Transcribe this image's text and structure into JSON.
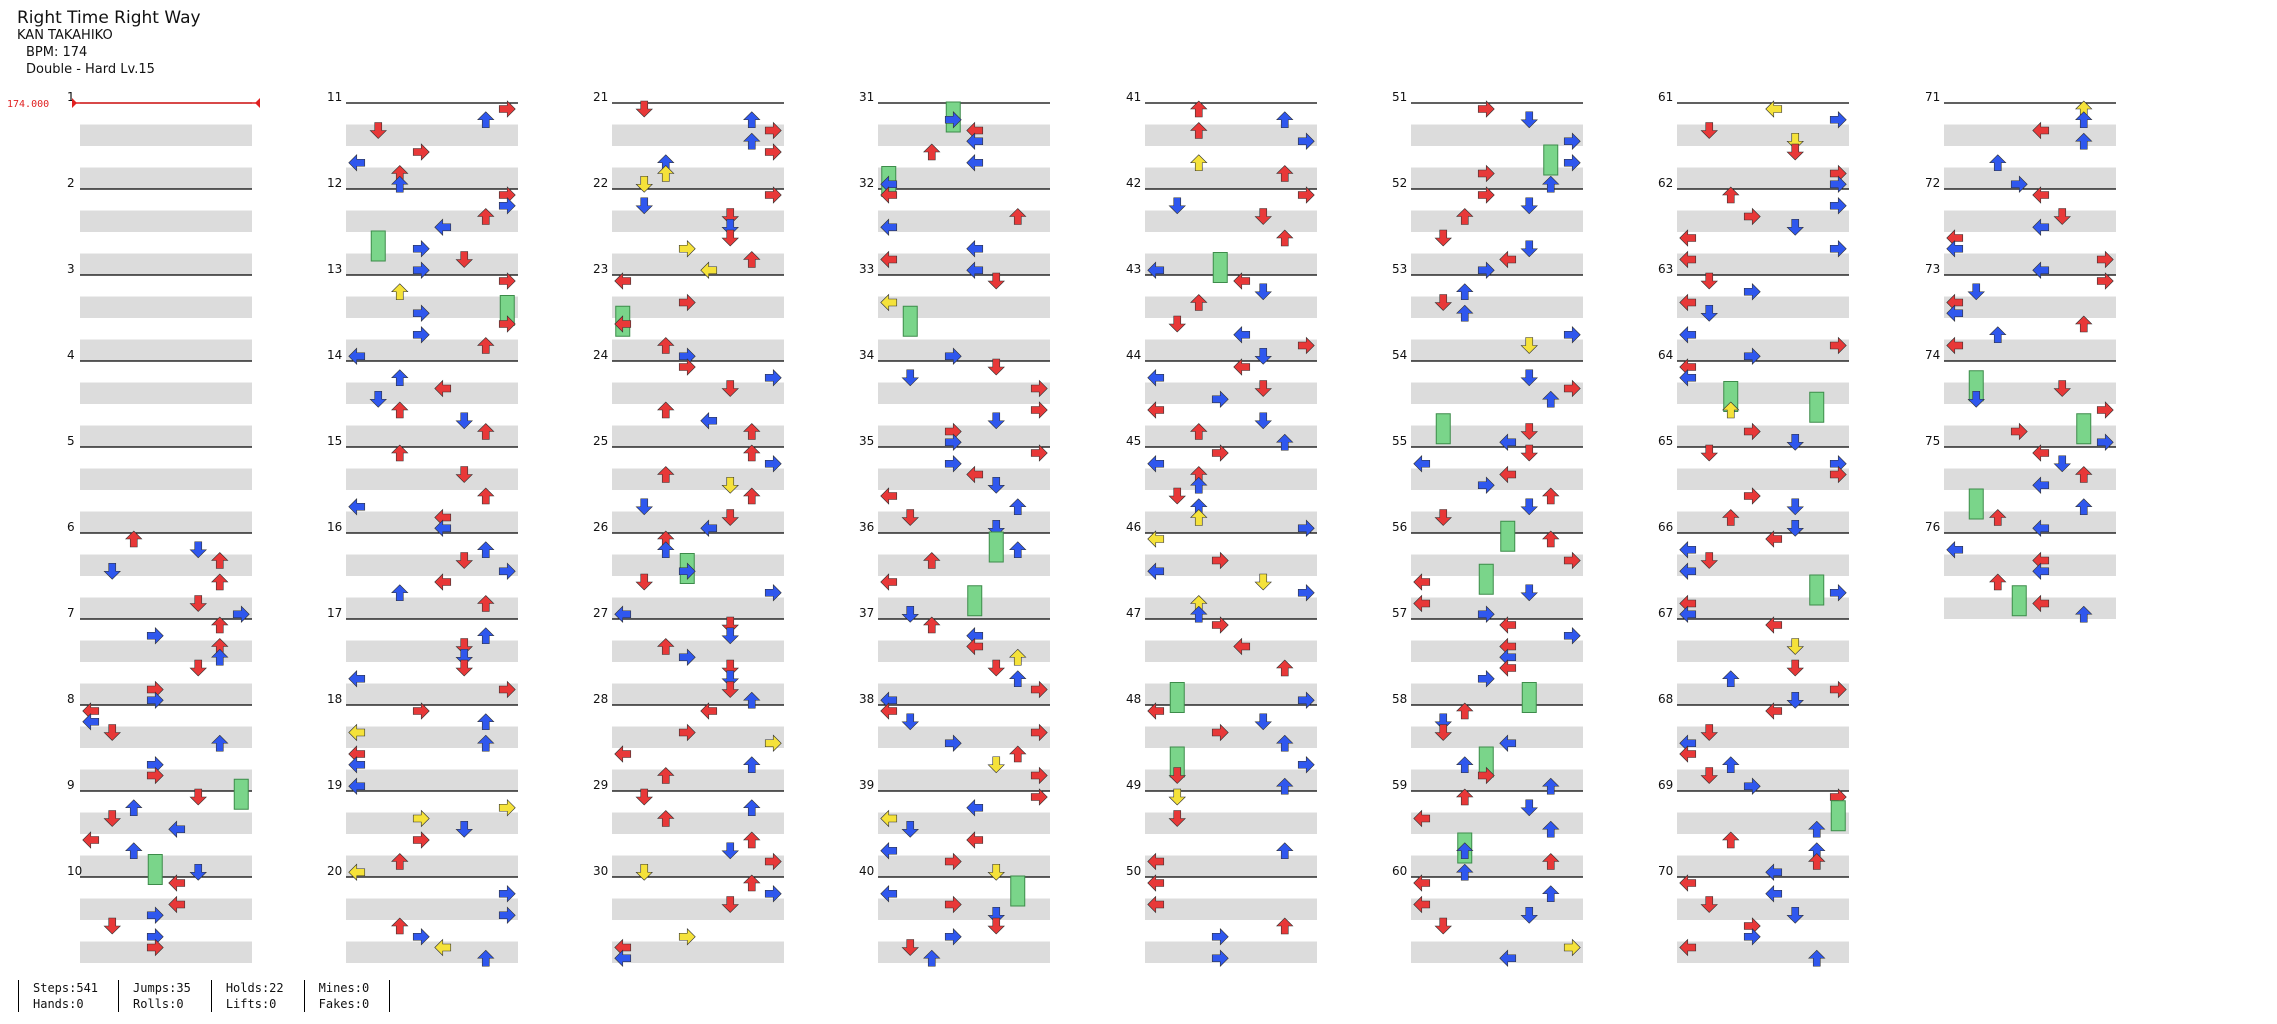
{
  "song": {
    "title": "Right Time Right Way",
    "artist": "KAN TAKAHIKO",
    "bpm_line": "BPM: 174",
    "difficulty_line": "Double - Hard  Lv.15"
  },
  "bpm_marker": "174.000",
  "measure_count": 76,
  "colors": {
    "quarter": "#e83838",
    "eighth": "#2f57ee",
    "sixteenth": "#f5e23a",
    "hold": "#7ad58a",
    "bar_line": "#000000",
    "beat_band": "#dcdcdc",
    "bpm_line": "#e02020"
  },
  "arrow_icons": [
    "left-arrow-icon",
    "down-arrow-icon",
    "up-arrow-icon",
    "right-arrow-icon",
    "hold-note-icon"
  ],
  "stats": [
    {
      "a": "Steps:541",
      "b": "Hands:0"
    },
    {
      "a": "Jumps:35",
      "b": "Rolls:0"
    },
    {
      "a": "Holds:22",
      "b": "Lifts:0"
    },
    {
      "a": "Mines:0",
      "b": "Fakes:0"
    },
    {
      "a": "",
      "b": ""
    }
  ]
}
